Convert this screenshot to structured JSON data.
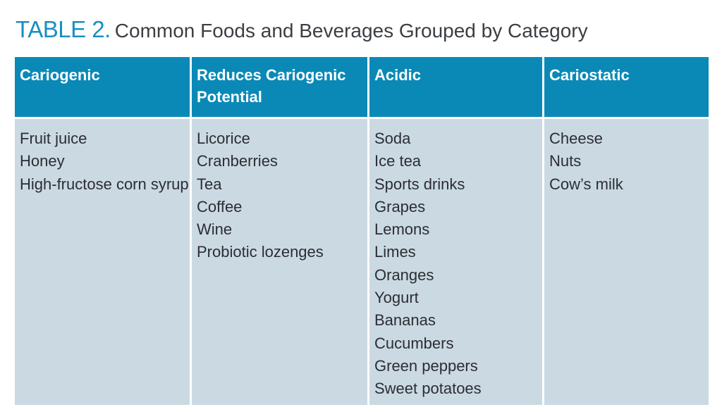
{
  "title": {
    "label": "TABLE 2.",
    "text": "Common Foods and Beverages Grouped by Category"
  },
  "columns": [
    {
      "header": "Cariogenic",
      "items": [
        "Fruit juice",
        "Honey",
        "High-fructose corn syrup"
      ]
    },
    {
      "header": "Reduces Cariogenic Potential",
      "items": [
        "Licorice",
        "Cranberries",
        "Tea",
        "Coffee",
        "Wine",
        "Probiotic lozenges"
      ]
    },
    {
      "header": "Acidic",
      "items": [
        "Soda",
        "Ice tea",
        "Sports drinks",
        "Grapes",
        "Lemons",
        "Limes",
        "Oranges",
        "Yogurt",
        "Bananas",
        "Cucumbers",
        "Green peppers",
        "Sweet potatoes"
      ]
    },
    {
      "header": "Cariostatic",
      "items": [
        "Cheese",
        "Nuts",
        "Cow’s milk"
      ]
    }
  ],
  "colors": {
    "accent": "#1a8fc0",
    "header_bg": "#0a89b7",
    "cell_bg": "#cbd9e3",
    "text": "#2b2e33"
  }
}
